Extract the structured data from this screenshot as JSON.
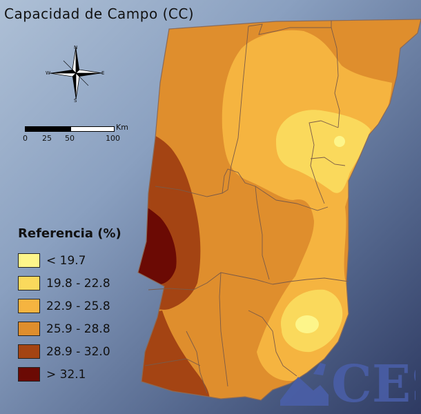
{
  "title": "Capacidad de Campo (CC)",
  "compass": {
    "icon": "compass-rose-icon",
    "n": "N",
    "s": "S",
    "e": "E",
    "w": "W"
  },
  "scale": {
    "unit": "Km",
    "ticks": [
      "0",
      "25",
      "50",
      "100"
    ]
  },
  "legend": {
    "title": "Referencia (%)",
    "items": [
      {
        "label": "< 19.7",
        "color": "#fdf58a"
      },
      {
        "label": "19.8 - 22.8",
        "color": "#fad95c"
      },
      {
        "label": "22.9 - 25.8",
        "color": "#f5b440"
      },
      {
        "label": "25.9 - 28.8",
        "color": "#df8e2d"
      },
      {
        "label": "28.9 - 32.0",
        "color": "#a44413"
      },
      {
        "label": "> 32.1",
        "color": "#6b0a04"
      }
    ]
  },
  "logo": {
    "text": "CES",
    "icon": "ces-logo-icon"
  },
  "colors": {
    "border": "#8a6a58",
    "background": "#5a6e96"
  }
}
